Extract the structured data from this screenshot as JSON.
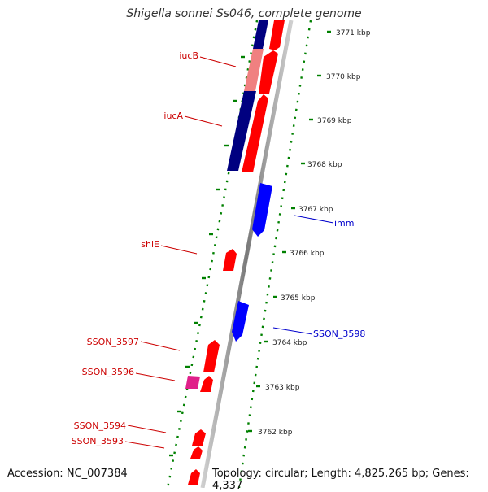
{
  "title": "Shigella sonnei Ss046, complete genome",
  "footer": {
    "accession": "Accession: NC_007384",
    "topology": "Topology: circular; Length: 4,825,265 bp; Genes: 4,337"
  },
  "ticks": [
    "3771 kbp",
    "3770 kbp",
    "3769 kbp",
    "3768 kbp",
    "3767 kbp",
    "3766 kbp",
    "3765 kbp",
    "3764 kbp",
    "3763 kbp",
    "3762 kbp"
  ],
  "labels": {
    "iucB": "iucB",
    "iucA": "iucA",
    "shiE": "shiE",
    "imm": "imm",
    "sson3598": "SSON_3598",
    "sson3597": "SSON_3597",
    "sson3596": "SSON_3596",
    "sson3594": "SSON_3594",
    "sson3593": "SSON_3593"
  },
  "colors": {
    "forward": "#ff0000",
    "reverse": "#0000ff",
    "navy": "#000080",
    "pink": "#f08080",
    "magenta": "#e0208a",
    "ticks": "#008000",
    "backbone": "#888888"
  }
}
